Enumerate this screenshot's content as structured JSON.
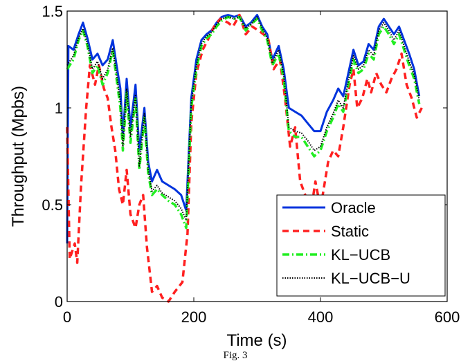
{
  "caption": "Fig. 3",
  "chart_data": {
    "type": "line",
    "xlabel": "Time (s)",
    "ylabel": "Throughput (Mpbs)",
    "xlim": [
      0,
      600
    ],
    "ylim": [
      0,
      1.5
    ],
    "xticks": [
      0,
      200,
      400,
      600
    ],
    "yticks": [
      0,
      0.5,
      1,
      1.5
    ],
    "xtick_labels": [
      "0",
      "200",
      "400",
      "600"
    ],
    "ytick_labels": [
      "0",
      "0.5",
      "1",
      "1.5"
    ],
    "grid": false,
    "legend_position": "bottom-right",
    "series": [
      {
        "name": "Oracle",
        "color": "#0033dd",
        "style": "solid",
        "points": [
          [
            0,
            0.3
          ],
          [
            2,
            1.32
          ],
          [
            10,
            1.3
          ],
          [
            18,
            1.38
          ],
          [
            25,
            1.44
          ],
          [
            32,
            1.36
          ],
          [
            40,
            1.25
          ],
          [
            48,
            1.28
          ],
          [
            56,
            1.22
          ],
          [
            64,
            1.25
          ],
          [
            72,
            1.35
          ],
          [
            78,
            1.22
          ],
          [
            84,
            1.1
          ],
          [
            88,
            0.85
          ],
          [
            94,
            1.15
          ],
          [
            100,
            0.9
          ],
          [
            108,
            1.12
          ],
          [
            114,
            0.78
          ],
          [
            122,
            1.0
          ],
          [
            128,
            0.72
          ],
          [
            134,
            0.62
          ],
          [
            142,
            0.68
          ],
          [
            150,
            0.62
          ],
          [
            160,
            0.6
          ],
          [
            170,
            0.58
          ],
          [
            180,
            0.55
          ],
          [
            188,
            0.47
          ],
          [
            196,
            1.05
          ],
          [
            204,
            1.25
          ],
          [
            212,
            1.35
          ],
          [
            220,
            1.38
          ],
          [
            228,
            1.4
          ],
          [
            236,
            1.44
          ],
          [
            244,
            1.47
          ],
          [
            254,
            1.48
          ],
          [
            264,
            1.47
          ],
          [
            272,
            1.48
          ],
          [
            282,
            1.42
          ],
          [
            290,
            1.44
          ],
          [
            300,
            1.48
          ],
          [
            308,
            1.42
          ],
          [
            316,
            1.38
          ],
          [
            324,
            1.25
          ],
          [
            334,
            1.32
          ],
          [
            342,
            1.2
          ],
          [
            350,
            1.0
          ],
          [
            360,
            0.98
          ],
          [
            370,
            0.96
          ],
          [
            380,
            0.92
          ],
          [
            390,
            0.88
          ],
          [
            400,
            0.88
          ],
          [
            410,
            0.98
          ],
          [
            420,
            1.04
          ],
          [
            428,
            1.1
          ],
          [
            436,
            1.06
          ],
          [
            444,
            1.18
          ],
          [
            452,
            1.3
          ],
          [
            460,
            1.22
          ],
          [
            468,
            1.24
          ],
          [
            476,
            1.33
          ],
          [
            484,
            1.3
          ],
          [
            492,
            1.42
          ],
          [
            500,
            1.46
          ],
          [
            508,
            1.42
          ],
          [
            516,
            1.38
          ],
          [
            524,
            1.42
          ],
          [
            532,
            1.35
          ],
          [
            540,
            1.28
          ],
          [
            548,
            1.2
          ],
          [
            556,
            1.06
          ]
        ]
      },
      {
        "name": "Static",
        "color": "#ff2020",
        "style": "dashed",
        "points": [
          [
            0,
            0.9
          ],
          [
            4,
            0.22
          ],
          [
            12,
            0.3
          ],
          [
            16,
            0.2
          ],
          [
            22,
            0.6
          ],
          [
            30,
            1.0
          ],
          [
            36,
            1.22
          ],
          [
            44,
            1.12
          ],
          [
            50,
            1.22
          ],
          [
            58,
            1.1
          ],
          [
            64,
            1.05
          ],
          [
            70,
            0.9
          ],
          [
            76,
            0.78
          ],
          [
            82,
            0.58
          ],
          [
            88,
            0.5
          ],
          [
            94,
            0.68
          ],
          [
            100,
            0.45
          ],
          [
            108,
            0.38
          ],
          [
            114,
            0.5
          ],
          [
            120,
            0.55
          ],
          [
            126,
            0.28
          ],
          [
            134,
            0.05
          ],
          [
            142,
            0.08
          ],
          [
            150,
            0.02
          ],
          [
            160,
            0.0
          ],
          [
            170,
            0.05
          ],
          [
            182,
            0.1
          ],
          [
            190,
            0.35
          ],
          [
            196,
            0.92
          ],
          [
            204,
            1.18
          ],
          [
            214,
            1.3
          ],
          [
            222,
            1.35
          ],
          [
            232,
            1.42
          ],
          [
            242,
            1.46
          ],
          [
            254,
            1.44
          ],
          [
            262,
            1.42
          ],
          [
            272,
            1.48
          ],
          [
            282,
            1.38
          ],
          [
            292,
            1.42
          ],
          [
            302,
            1.4
          ],
          [
            310,
            1.38
          ],
          [
            318,
            1.35
          ],
          [
            326,
            1.2
          ],
          [
            336,
            1.25
          ],
          [
            344,
            1.05
          ],
          [
            352,
            0.8
          ],
          [
            360,
            0.9
          ],
          [
            368,
            0.62
          ],
          [
            376,
            0.55
          ],
          [
            384,
            0.45
          ],
          [
            392,
            0.62
          ],
          [
            400,
            0.48
          ],
          [
            412,
            0.72
          ],
          [
            420,
            0.78
          ],
          [
            428,
            0.75
          ],
          [
            436,
            0.9
          ],
          [
            446,
            1.12
          ],
          [
            452,
            1.2
          ],
          [
            458,
            1.0
          ],
          [
            466,
            1.05
          ],
          [
            474,
            1.15
          ],
          [
            480,
            1.08
          ],
          [
            488,
            1.18
          ],
          [
            496,
            1.12
          ],
          [
            504,
            1.08
          ],
          [
            512,
            1.15
          ],
          [
            520,
            1.2
          ],
          [
            528,
            1.28
          ],
          [
            536,
            1.12
          ],
          [
            544,
            1.05
          ],
          [
            552,
            0.95
          ],
          [
            560,
            1.0
          ]
        ]
      },
      {
        "name": "KL−UCB",
        "color": "#22ee22",
        "style": "dashdot",
        "points": [
          [
            0,
            1.2
          ],
          [
            10,
            1.25
          ],
          [
            18,
            1.35
          ],
          [
            25,
            1.4
          ],
          [
            32,
            1.32
          ],
          [
            40,
            1.18
          ],
          [
            48,
            1.22
          ],
          [
            56,
            1.12
          ],
          [
            64,
            1.18
          ],
          [
            72,
            1.3
          ],
          [
            78,
            1.15
          ],
          [
            84,
            1.0
          ],
          [
            88,
            0.78
          ],
          [
            94,
            1.08
          ],
          [
            100,
            0.82
          ],
          [
            108,
            1.05
          ],
          [
            114,
            0.68
          ],
          [
            122,
            0.95
          ],
          [
            128,
            0.66
          ],
          [
            134,
            0.55
          ],
          [
            142,
            0.58
          ],
          [
            150,
            0.55
          ],
          [
            160,
            0.52
          ],
          [
            170,
            0.5
          ],
          [
            180,
            0.45
          ],
          [
            188,
            0.38
          ],
          [
            196,
            1.0
          ],
          [
            204,
            1.2
          ],
          [
            212,
            1.32
          ],
          [
            220,
            1.36
          ],
          [
            228,
            1.38
          ],
          [
            236,
            1.42
          ],
          [
            244,
            1.45
          ],
          [
            254,
            1.47
          ],
          [
            264,
            1.46
          ],
          [
            272,
            1.47
          ],
          [
            282,
            1.4
          ],
          [
            290,
            1.43
          ],
          [
            300,
            1.46
          ],
          [
            308,
            1.4
          ],
          [
            316,
            1.35
          ],
          [
            324,
            1.22
          ],
          [
            334,
            1.28
          ],
          [
            342,
            1.15
          ],
          [
            350,
            0.88
          ],
          [
            360,
            0.85
          ],
          [
            370,
            0.85
          ],
          [
            380,
            0.8
          ],
          [
            390,
            0.75
          ],
          [
            400,
            0.78
          ],
          [
            410,
            0.88
          ],
          [
            420,
            0.95
          ],
          [
            428,
            1.02
          ],
          [
            436,
            0.98
          ],
          [
            444,
            1.12
          ],
          [
            452,
            1.25
          ],
          [
            460,
            1.18
          ],
          [
            468,
            1.2
          ],
          [
            476,
            1.28
          ],
          [
            484,
            1.25
          ],
          [
            492,
            1.38
          ],
          [
            500,
            1.42
          ],
          [
            508,
            1.38
          ],
          [
            516,
            1.33
          ],
          [
            524,
            1.38
          ],
          [
            532,
            1.3
          ],
          [
            540,
            1.22
          ],
          [
            548,
            1.15
          ],
          [
            556,
            1.02
          ]
        ]
      },
      {
        "name": "KL−UCB−U",
        "color": "#000000",
        "style": "dotted",
        "points": [
          [
            0,
            1.22
          ],
          [
            10,
            1.27
          ],
          [
            18,
            1.36
          ],
          [
            25,
            1.41
          ],
          [
            32,
            1.33
          ],
          [
            40,
            1.2
          ],
          [
            48,
            1.24
          ],
          [
            56,
            1.15
          ],
          [
            64,
            1.2
          ],
          [
            72,
            1.31
          ],
          [
            78,
            1.17
          ],
          [
            84,
            1.03
          ],
          [
            88,
            0.8
          ],
          [
            94,
            1.1
          ],
          [
            100,
            0.85
          ],
          [
            108,
            1.07
          ],
          [
            114,
            0.7
          ],
          [
            122,
            0.97
          ],
          [
            128,
            0.68
          ],
          [
            134,
            0.57
          ],
          [
            142,
            0.6
          ],
          [
            150,
            0.56
          ],
          [
            160,
            0.54
          ],
          [
            170,
            0.52
          ],
          [
            180,
            0.48
          ],
          [
            188,
            0.42
          ],
          [
            196,
            1.02
          ],
          [
            204,
            1.22
          ],
          [
            212,
            1.33
          ],
          [
            220,
            1.37
          ],
          [
            228,
            1.39
          ],
          [
            236,
            1.43
          ],
          [
            244,
            1.46
          ],
          [
            254,
            1.47
          ],
          [
            264,
            1.46
          ],
          [
            272,
            1.47
          ],
          [
            282,
            1.41
          ],
          [
            290,
            1.43
          ],
          [
            300,
            1.47
          ],
          [
            308,
            1.41
          ],
          [
            316,
            1.36
          ],
          [
            324,
            1.23
          ],
          [
            334,
            1.3
          ],
          [
            342,
            1.17
          ],
          [
            350,
            0.9
          ],
          [
            360,
            0.88
          ],
          [
            370,
            0.87
          ],
          [
            380,
            0.83
          ],
          [
            390,
            0.78
          ],
          [
            400,
            0.8
          ],
          [
            410,
            0.9
          ],
          [
            420,
            0.97
          ],
          [
            428,
            1.04
          ],
          [
            436,
            1.0
          ],
          [
            444,
            1.14
          ],
          [
            452,
            1.27
          ],
          [
            460,
            1.2
          ],
          [
            468,
            1.22
          ],
          [
            476,
            1.3
          ],
          [
            484,
            1.27
          ],
          [
            492,
            1.4
          ],
          [
            500,
            1.44
          ],
          [
            508,
            1.4
          ],
          [
            516,
            1.35
          ],
          [
            524,
            1.4
          ],
          [
            532,
            1.32
          ],
          [
            540,
            1.24
          ],
          [
            548,
            1.17
          ],
          [
            556,
            1.04
          ]
        ]
      }
    ]
  }
}
